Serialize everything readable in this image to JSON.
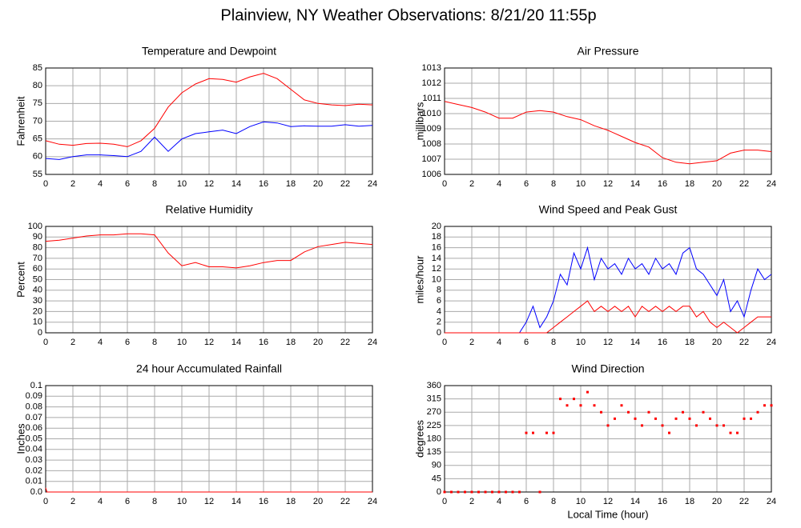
{
  "title": "Plainview, NY Weather Observations: 8/21/20 11:55p",
  "chart_data": [
    {
      "type": "line",
      "title": "Temperature and Dewpoint",
      "y_label": "Fahrenheit",
      "x": [
        0,
        1,
        2,
        3,
        4,
        5,
        6,
        7,
        8,
        9,
        10,
        11,
        12,
        13,
        14,
        15,
        16,
        17,
        18,
        19,
        20,
        21,
        22,
        23,
        24
      ],
      "series": [
        {
          "color": "#ff0000",
          "values": [
            64.5,
            63.5,
            63.2,
            63.7,
            63.8,
            63.5,
            62.8,
            64.5,
            68,
            74,
            78,
            80.5,
            82,
            81.8,
            81,
            82.5,
            83.5,
            82,
            79,
            76,
            75,
            74.6,
            74.4,
            74.8,
            74.6
          ]
        },
        {
          "color": "#0000ff",
          "values": [
            59.5,
            59.2,
            60,
            60.5,
            60.5,
            60.3,
            60,
            61.5,
            65.5,
            61.5,
            65,
            66.5,
            67,
            67.5,
            66.5,
            68.5,
            69.8,
            69.5,
            68.5,
            68.7,
            68.6,
            68.6,
            69,
            68.6,
            68.8
          ]
        }
      ],
      "xlim": [
        0,
        24
      ],
      "xticks": [
        0,
        2,
        4,
        6,
        8,
        10,
        12,
        14,
        16,
        18,
        20,
        22,
        24
      ],
      "ylim": [
        55,
        85
      ],
      "yticks": [
        55,
        60,
        65,
        70,
        75,
        80,
        85
      ],
      "grid": true
    },
    {
      "type": "line",
      "title": "Air Pressure",
      "y_label": "millibars",
      "x": [
        0,
        1,
        2,
        3,
        4,
        5,
        6,
        7,
        8,
        9,
        10,
        11,
        12,
        13,
        14,
        15,
        16,
        17,
        18,
        19,
        20,
        21,
        22,
        23,
        24
      ],
      "series": [
        {
          "color": "#ff0000",
          "values": [
            1010.8,
            1010.6,
            1010.4,
            1010.1,
            1009.7,
            1009.7,
            1010.1,
            1010.2,
            1010.1,
            1009.8,
            1009.6,
            1009.2,
            1008.9,
            1008.5,
            1008.1,
            1007.8,
            1007.1,
            1006.8,
            1006.7,
            1006.8,
            1006.9,
            1007.4,
            1007.6,
            1007.6,
            1007.5
          ]
        }
      ],
      "xlim": [
        0,
        24
      ],
      "xticks": [
        0,
        2,
        4,
        6,
        8,
        10,
        12,
        14,
        16,
        18,
        20,
        22,
        24
      ],
      "ylim": [
        1006,
        1013
      ],
      "yticks": [
        1006,
        1007,
        1008,
        1009,
        1010,
        1011,
        1012,
        1013
      ],
      "grid": true
    },
    {
      "type": "line",
      "title": "Relative Humidity",
      "y_label": "Percent",
      "x": [
        0,
        1,
        2,
        3,
        4,
        5,
        6,
        7,
        8,
        9,
        10,
        11,
        12,
        13,
        14,
        15,
        16,
        17,
        18,
        19,
        20,
        21,
        22,
        23,
        24
      ],
      "series": [
        {
          "color": "#ff0000",
          "values": [
            86,
            87,
            89,
            91,
            92,
            92,
            93,
            93,
            92,
            75,
            63,
            66,
            62,
            62,
            61,
            63,
            66,
            68,
            68,
            76,
            81,
            83,
            85,
            84,
            83
          ]
        }
      ],
      "xlim": [
        0,
        24
      ],
      "xticks": [
        0,
        2,
        4,
        6,
        8,
        10,
        12,
        14,
        16,
        18,
        20,
        22,
        24
      ],
      "ylim": [
        0,
        100
      ],
      "yticks": [
        0,
        10,
        20,
        30,
        40,
        50,
        60,
        70,
        80,
        90,
        100
      ],
      "grid": true
    },
    {
      "type": "line",
      "title": "Wind Speed and Peak Gust",
      "y_label": "miles/hour",
      "x": [
        0,
        0.5,
        1,
        1.5,
        2,
        2.5,
        3,
        3.5,
        4,
        4.5,
        5,
        5.5,
        6,
        6.5,
        7,
        7.5,
        8,
        8.5,
        9,
        9.5,
        10,
        10.5,
        11,
        11.5,
        12,
        12.5,
        13,
        13.5,
        14,
        14.5,
        15,
        15.5,
        16,
        16.5,
        17,
        17.5,
        18,
        18.5,
        19,
        19.5,
        20,
        20.5,
        21,
        21.5,
        22,
        22.5,
        23,
        23.5,
        24
      ],
      "series": [
        {
          "color": "#0000ff",
          "values": [
            0,
            0,
            0,
            0,
            0,
            0,
            0,
            0,
            0,
            0,
            0,
            0,
            2,
            5,
            1,
            3,
            6,
            11,
            9,
            15,
            12,
            16,
            10,
            14,
            12,
            13,
            11,
            14,
            12,
            13,
            11,
            14,
            12,
            13,
            11,
            15,
            16,
            12,
            11,
            9,
            7,
            10,
            4,
            6,
            3,
            8,
            12,
            10,
            11
          ]
        },
        {
          "color": "#ff0000",
          "values": [
            0,
            0,
            0,
            0,
            0,
            0,
            0,
            0,
            0,
            0,
            0,
            0,
            0,
            0,
            0,
            0,
            1,
            2,
            3,
            4,
            5,
            6,
            4,
            5,
            4,
            5,
            4,
            5,
            3,
            5,
            4,
            5,
            4,
            5,
            4,
            5,
            5,
            3,
            4,
            2,
            1,
            2,
            1,
            0,
            1,
            2,
            3,
            3,
            3
          ]
        }
      ],
      "xlim": [
        0,
        24
      ],
      "xticks": [
        0,
        2,
        4,
        6,
        8,
        10,
        12,
        14,
        16,
        18,
        20,
        22,
        24
      ],
      "ylim": [
        0,
        20
      ],
      "yticks": [
        0,
        2,
        4,
        6,
        8,
        10,
        12,
        14,
        16,
        18,
        20
      ],
      "grid": true
    },
    {
      "type": "line",
      "title": "24 hour Accumulated Rainfall",
      "y_label": "Inches",
      "x": [
        0,
        0.1,
        24
      ],
      "series": [
        {
          "color": "#ff0000",
          "values": [
            0.004,
            0,
            0
          ]
        }
      ],
      "xlim": [
        0,
        24
      ],
      "xticks": [
        0,
        2,
        4,
        6,
        8,
        10,
        12,
        14,
        16,
        18,
        20,
        22,
        24
      ],
      "ylim": [
        0,
        0.1
      ],
      "yticks": [
        {
          "value": 0,
          "label": "0.0"
        },
        0.01,
        0.02,
        0.03,
        0.04,
        0.05,
        0.06,
        0.07,
        0.08,
        0.09,
        0.1
      ],
      "grid": true
    },
    {
      "type": "scatter",
      "title": "Wind Direction",
      "y_label": "degrees",
      "x_label": "Local Time (hour)",
      "x": [
        0,
        0.5,
        1,
        1.5,
        2,
        2.5,
        3,
        3.5,
        4,
        4.5,
        5,
        5.5,
        6,
        6.5,
        7,
        7.5,
        8,
        8.5,
        9,
        9.5,
        10,
        10.5,
        11,
        11.5,
        12,
        12.5,
        13,
        13.5,
        14,
        14.5,
        15,
        15.5,
        16,
        16.5,
        17,
        17.5,
        18,
        18.5,
        19,
        19.5,
        20,
        20.5,
        21,
        21.5,
        22,
        22.5,
        23,
        23.5,
        24
      ],
      "series": [
        {
          "color": "#ff0000",
          "values": [
            0,
            0,
            0,
            0,
            0,
            0,
            0,
            0,
            0,
            0,
            0,
            0,
            200,
            200,
            0,
            200,
            200,
            315,
            293,
            315,
            293,
            338,
            293,
            270,
            225,
            248,
            293,
            270,
            248,
            225,
            270,
            248,
            225,
            200,
            248,
            270,
            248,
            225,
            270,
            248,
            225,
            225,
            200,
            200,
            248,
            248,
            270,
            293,
            293
          ]
        }
      ],
      "xlim": [
        0,
        24
      ],
      "xticks": [
        0,
        2,
        4,
        6,
        8,
        10,
        12,
        14,
        16,
        18,
        20,
        22,
        24
      ],
      "ylim": [
        0,
        360
      ],
      "yticks": [
        0,
        45,
        90,
        135,
        180,
        225,
        270,
        315,
        360
      ],
      "grid": true
    }
  ]
}
